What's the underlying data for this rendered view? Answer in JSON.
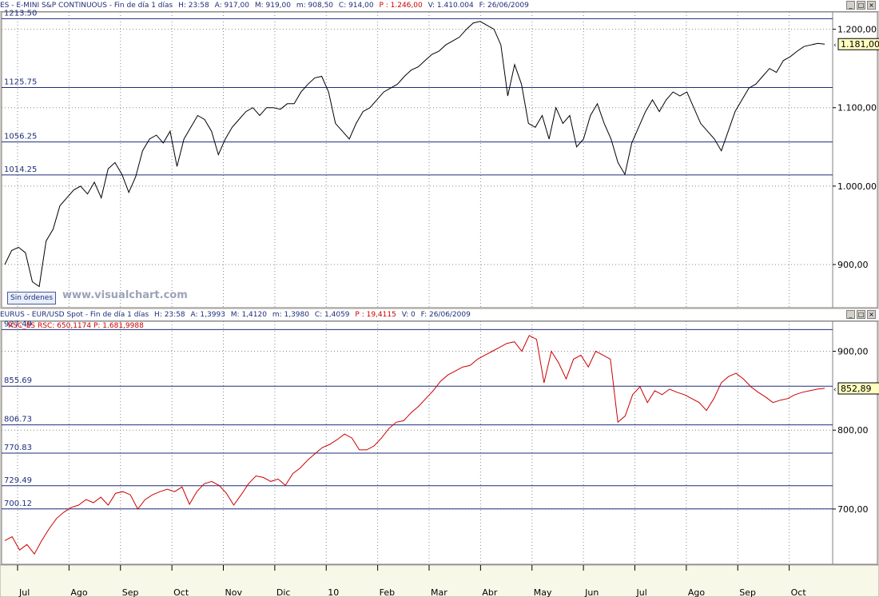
{
  "top_header": {
    "symbol": "ES - E-MINI S&P CONTINUOUS - Fin de día 1 días",
    "h": "H: 23:58",
    "a": "A: 917,00",
    "m": "M: 919,00",
    "min": "m: 908,50",
    "c": "C: 914,00",
    "p": "P : 1.246,00",
    "v": "V: 1.410.004",
    "f": "F: 26/06/2009"
  },
  "bottom_header": {
    "symbol": "EURUS - EUR/USD Spot - Fin de día 1 días",
    "h": "H: 23:58",
    "a": "A: 1,3993",
    "m": "M: 1,4120",
    "min": "m: 1,3980",
    "c": "C: 1,4059",
    "p": "P : 19,4115",
    "v": "V: 0",
    "f": "F: 26/06/2009"
  },
  "indicator_label": "RSC_ES  RSC: 650,1174  P: 1.681,9988",
  "orders_button": "Sin órdenes",
  "watermark": "www.visualchart.com",
  "window_buttons": [
    "_",
    "□",
    "×"
  ],
  "colors": {
    "price_line": "#000000",
    "rsc_line": "#cc0000",
    "level_line": "#1f2d7a",
    "plot_bg": "#ffffff",
    "value_tag_bg": "#ffffc0"
  },
  "chart_data": [
    {
      "type": "line",
      "title": "ES - E-MINI S&P CONTINUOUS",
      "ylim": [
        845,
        1222
      ],
      "yticks": [
        "900,00",
        "1.000,00",
        "1.100,00",
        "1.200,00"
      ],
      "ytick_values": [
        900,
        1000,
        1100,
        1200
      ],
      "last_value_label": "1.181,00",
      "last_value": 1181,
      "levels": [
        {
          "label": "1213.50",
          "value": 1213.5
        },
        {
          "label": "1125.75",
          "value": 1125.75
        },
        {
          "label": "1056.25",
          "value": 1056.25
        },
        {
          "label": "1014.25",
          "value": 1014.25
        }
      ],
      "series": [
        {
          "values": [
            900,
            918,
            922,
            915,
            878,
            872,
            930,
            945,
            975,
            985,
            995,
            1000,
            990,
            1005,
            985,
            1022,
            1030,
            1015,
            992,
            1012,
            1045,
            1060,
            1065,
            1055,
            1070,
            1025,
            1060,
            1075,
            1090,
            1085,
            1070,
            1040,
            1060,
            1075,
            1085,
            1095,
            1100,
            1090,
            1100,
            1100,
            1098,
            1105,
            1105,
            1120,
            1130,
            1138,
            1140,
            1120,
            1080,
            1070,
            1060,
            1080,
            1095,
            1100,
            1110,
            1120,
            1125,
            1130,
            1140,
            1148,
            1152,
            1160,
            1168,
            1172,
            1180,
            1185,
            1190,
            1200,
            1208,
            1210,
            1205,
            1200,
            1180,
            1115,
            1155,
            1130,
            1080,
            1075,
            1090,
            1060,
            1100,
            1080,
            1090,
            1050,
            1060,
            1090,
            1105,
            1080,
            1060,
            1030,
            1015,
            1055,
            1075,
            1095,
            1110,
            1095,
            1110,
            1120,
            1115,
            1120,
            1100,
            1080,
            1070,
            1060,
            1045,
            1070,
            1095,
            1110,
            1125,
            1130,
            1140,
            1150,
            1145,
            1160,
            1165,
            1172,
            1178,
            1180,
            1182,
            1181
          ]
        }
      ],
      "months": [
        "Jul",
        "Ago",
        "Sep",
        "Oct",
        "Nov",
        "Dic",
        "10",
        "Feb",
        "Mar",
        "Abr",
        "May",
        "Jun",
        "Jul",
        "Ago",
        "Sep",
        "Oct"
      ]
    },
    {
      "type": "line",
      "title": "RSC_ES",
      "ylim": [
        630,
        938
      ],
      "yticks": [
        "700,00",
        "800,00",
        "900,00"
      ],
      "ytick_values": [
        700,
        800,
        900
      ],
      "last_value_label": "852,89",
      "last_value": 852.89,
      "levels": [
        {
          "label": "927.49",
          "value": 927.49
        },
        {
          "label": "855.69",
          "value": 855.69
        },
        {
          "label": "806.73",
          "value": 806.73
        },
        {
          "label": "770.83",
          "value": 770.83
        },
        {
          "label": "729.49",
          "value": 729.49
        },
        {
          "label": "700.12",
          "value": 700.12
        }
      ],
      "series": [
        {
          "values": [
            660,
            665,
            648,
            655,
            643,
            660,
            675,
            688,
            696,
            702,
            705,
            712,
            708,
            715,
            705,
            720,
            722,
            718,
            700,
            712,
            718,
            722,
            725,
            722,
            728,
            706,
            722,
            732,
            735,
            730,
            720,
            705,
            718,
            732,
            742,
            740,
            735,
            738,
            730,
            745,
            752,
            762,
            770,
            778,
            782,
            788,
            795,
            790,
            775,
            775,
            780,
            790,
            802,
            810,
            812,
            822,
            830,
            840,
            850,
            862,
            870,
            875,
            880,
            882,
            890,
            895,
            900,
            905,
            910,
            912,
            900,
            920,
            915,
            860,
            900,
            885,
            865,
            890,
            895,
            880,
            900,
            895,
            890,
            810,
            818,
            845,
            855,
            835,
            850,
            845,
            852,
            848,
            845,
            840,
            835,
            825,
            840,
            860,
            868,
            872,
            865,
            855,
            848,
            842,
            835,
            838,
            840,
            845,
            848,
            850,
            852,
            853
          ]
        }
      ],
      "months": [
        "Jul",
        "Ago",
        "Sep",
        "Oct",
        "Nov",
        "Dic",
        "10",
        "Feb",
        "Mar",
        "Abr",
        "May",
        "Jun",
        "Jul",
        "Ago",
        "Sep",
        "Oct"
      ]
    }
  ]
}
